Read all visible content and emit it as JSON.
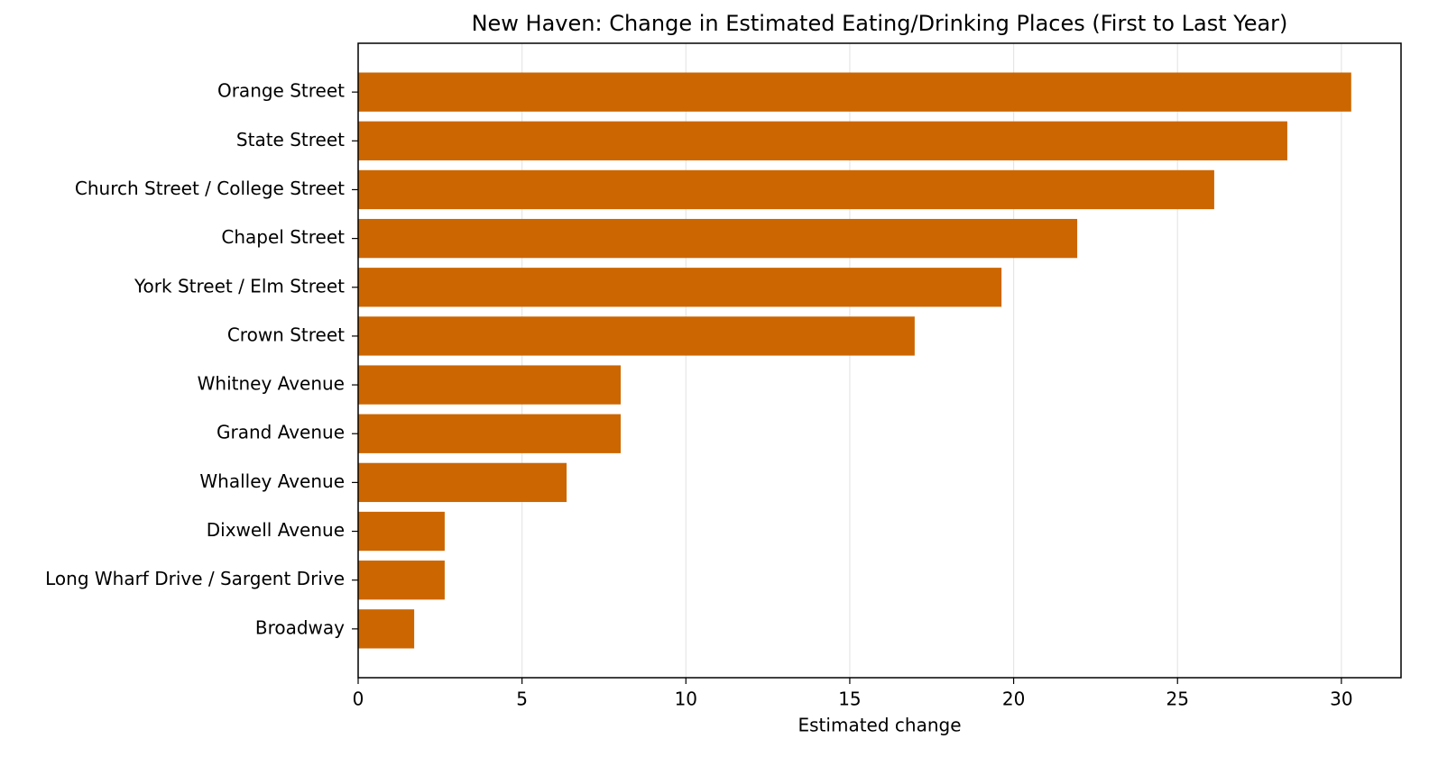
{
  "chart_data": {
    "type": "barh",
    "title": "New Haven: Change in Estimated Eating/Drinking Places (First to Last Year)",
    "x_label": "Estimated change",
    "categories": [
      "Orange Street",
      "State Street",
      "Church Street / College Street",
      "Chapel Street",
      "York Street / Elm Street",
      "Crown Street",
      "Whitney Avenue",
      "Grand Avenue",
      "Whalley Avenue",
      "Dixwell Avenue",
      "Long Wharf Drive / Sargent Drive",
      "Broadway"
    ],
    "values": [
      30.3,
      28.35,
      26.12,
      21.94,
      19.63,
      16.98,
      8.01,
      8.01,
      6.36,
      2.64,
      2.64,
      1.71
    ],
    "color": "#cc6600",
    "xlim": [
      0,
      31.82
    ],
    "xticks": [
      0,
      5,
      10,
      15,
      20,
      25,
      30
    ],
    "grid": true
  }
}
